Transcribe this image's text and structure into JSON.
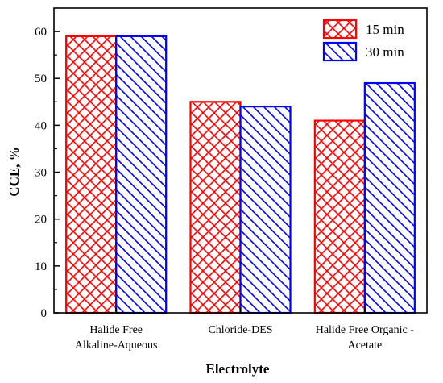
{
  "chart_data": {
    "type": "bar",
    "xlabel": "Electrolyte",
    "ylabel": "CCE, %",
    "ylim": [
      0,
      65
    ],
    "yticks": [
      0,
      10,
      20,
      30,
      40,
      50,
      60
    ],
    "categories": [
      [
        "Halide Free",
        "Alkaline-Aqueous"
      ],
      [
        "Chloride-DES"
      ],
      [
        "Halide Free Organic -",
        "Acetate"
      ]
    ],
    "series": [
      {
        "name": "15 min",
        "values": [
          59,
          45,
          41
        ],
        "color": "#ff0000",
        "pattern": "crosshatch"
      },
      {
        "name": "30 min",
        "values": [
          59,
          44,
          49
        ],
        "color": "#0000ff",
        "pattern": "diagonal"
      }
    ],
    "legend": "top-right",
    "grid": false
  }
}
